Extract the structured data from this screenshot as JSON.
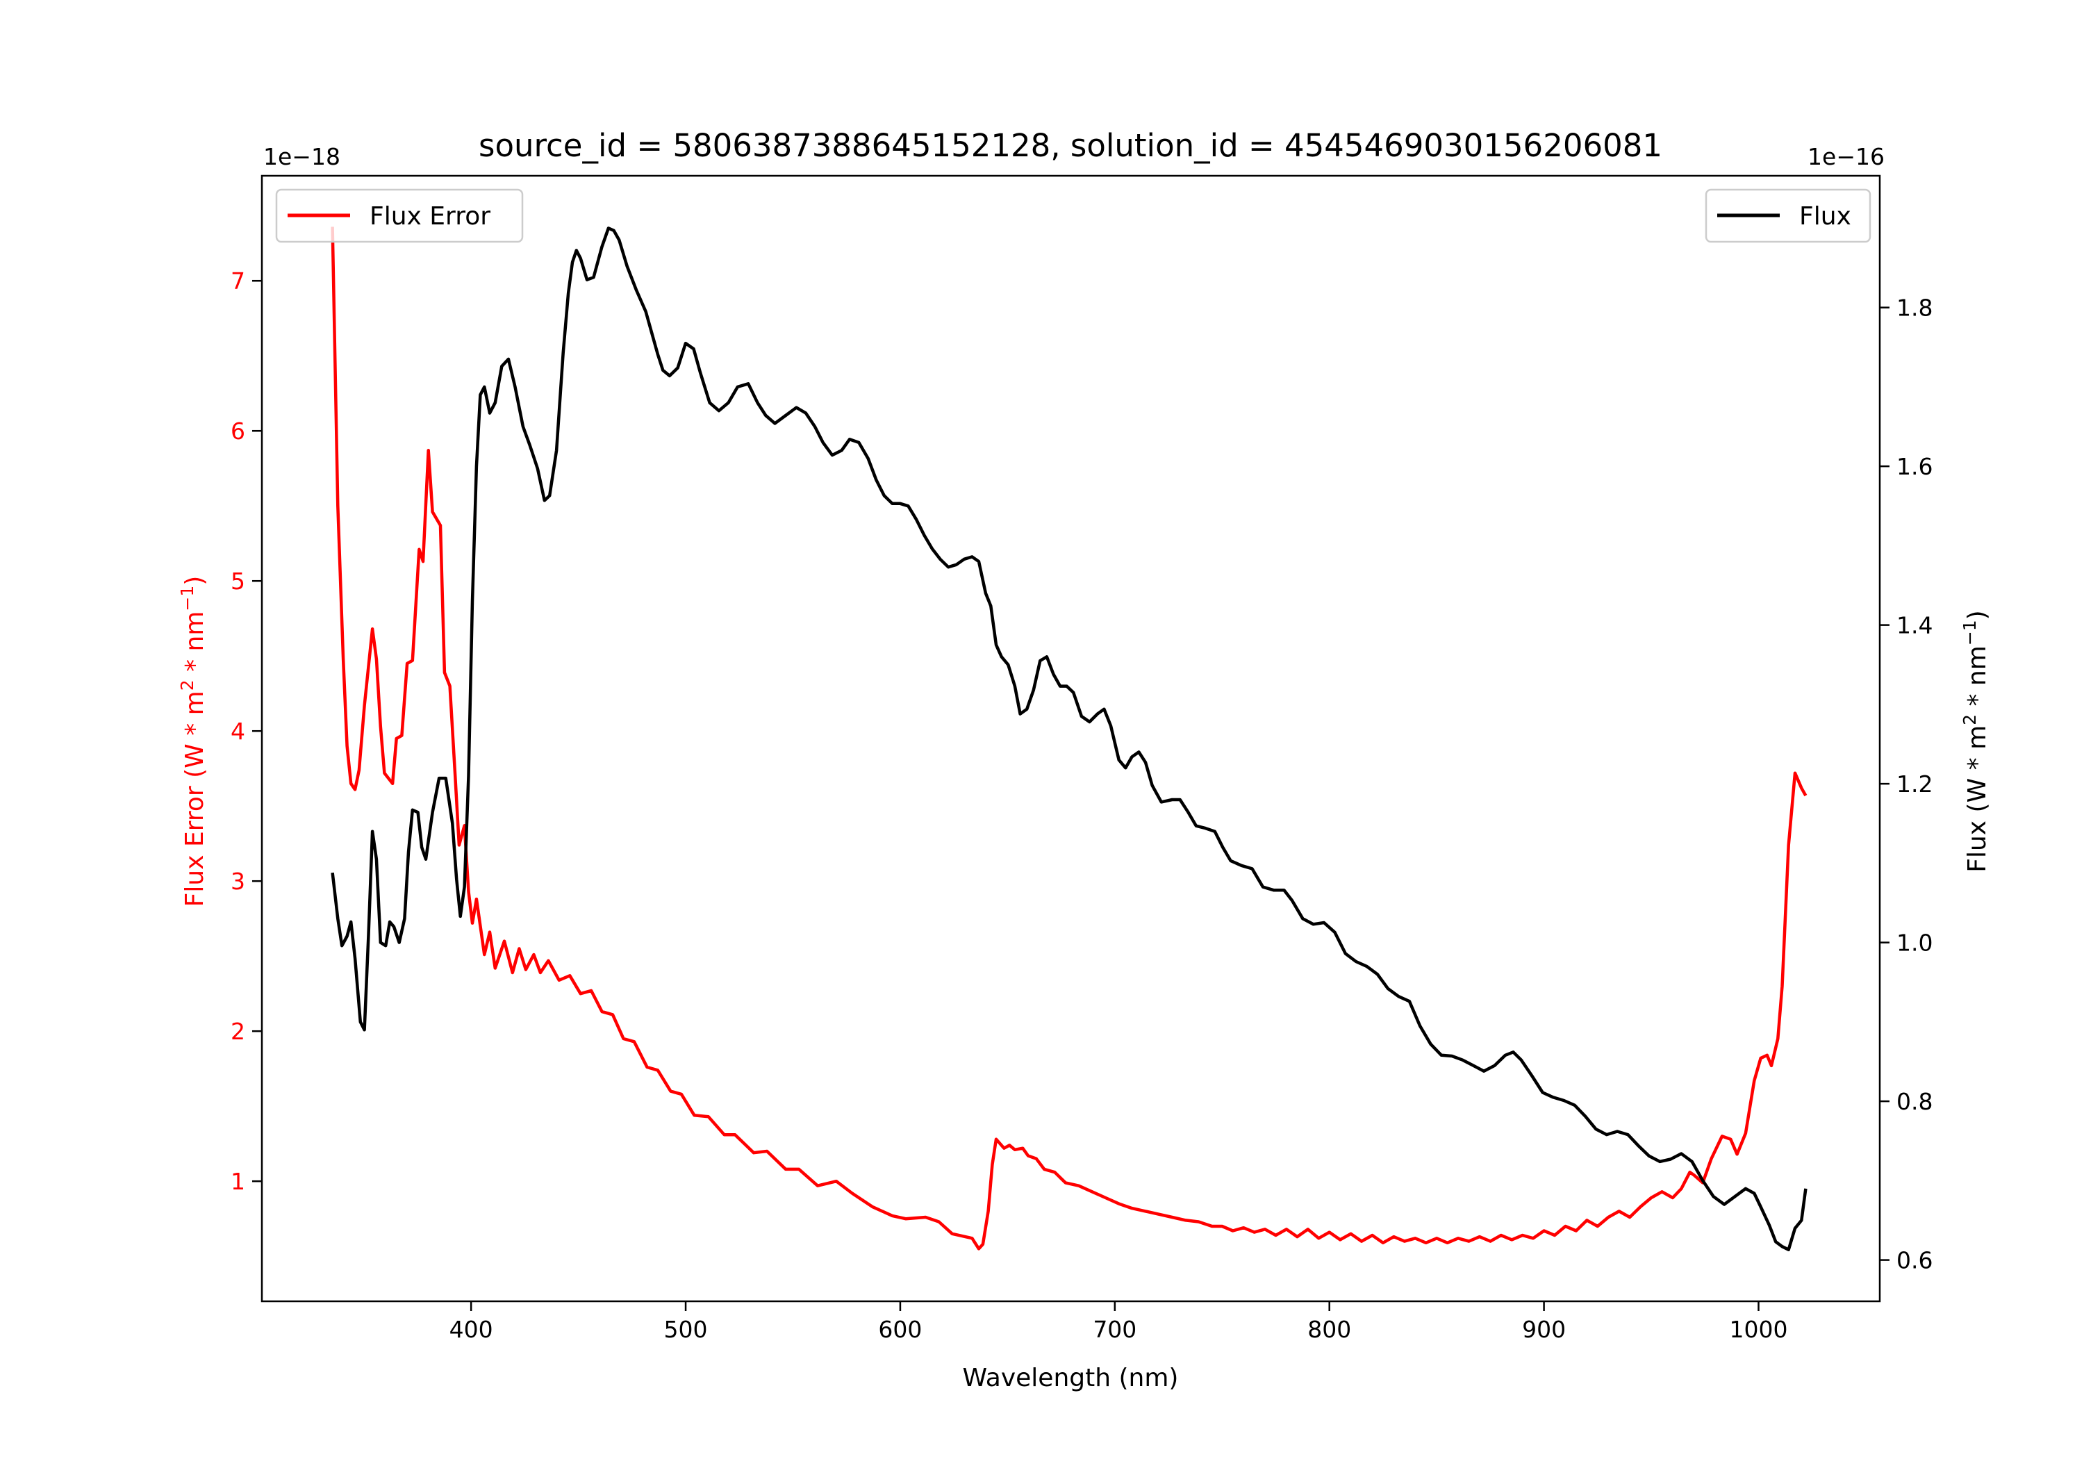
{
  "chart_data": {
    "type": "line",
    "title": "source_id = 5806387388645152128, solution_id = 4545469030156206081",
    "xlabel": "Wavelength (nm)",
    "xlim": [
      302.5,
      1056.5
    ],
    "xticks": [
      400,
      500,
      600,
      700,
      800,
      900,
      1000
    ],
    "grid": false,
    "y_left": {
      "label": {
        "prefix": "Flux Error (W * m",
        "sup1": "2",
        "mid": " * nm",
        "sup2": "−1",
        "suffix": ")"
      },
      "offset_text": "1e−18",
      "ylim": [
        0.2,
        7.7
      ],
      "ticks": [
        1,
        2,
        3,
        4,
        5,
        6,
        7
      ],
      "color": "#ff0000"
    },
    "y_right": {
      "label": {
        "prefix": "Flux (W * m",
        "sup1": "2",
        "mid": " * nm",
        "sup2": "−1",
        "suffix": ")"
      },
      "offset_text": "1e−16",
      "ylim": [
        0.548,
        1.966
      ],
      "ticks": [
        0.6,
        0.8,
        1.0,
        1.2,
        1.4,
        1.6,
        1.8
      ],
      "color": "#000000"
    },
    "legends": [
      {
        "label": "Flux Error",
        "placement": "upper-left",
        "color": "#ff0000"
      },
      {
        "label": "Flux",
        "placement": "upper-right",
        "color": "#000000"
      }
    ],
    "series": [
      {
        "name": "Flux Error",
        "axis": "left",
        "color": "#ff0000",
        "x": [
          335.4,
          337.9,
          340.4,
          342.2,
          344,
          345.9,
          347.8,
          350.3,
          354,
          355.9,
          357.8,
          359.6,
          363.4,
          365.2,
          367.7,
          370.2,
          372.7,
          375.8,
          377.6,
          380.1,
          382,
          385.7,
          387.6,
          390.1,
          392.5,
          394.4,
          396.9,
          398.8,
          400.6,
          402.5,
          406.2,
          408.7,
          411.2,
          415.5,
          419.3,
          422.4,
          425.5,
          429.2,
          432.3,
          436,
          441,
          446,
          451,
          456,
          461,
          466,
          471,
          476,
          482,
          487,
          493,
          498,
          504,
          510.6,
          518,
          523,
          531.7,
          537.9,
          546.6,
          552.8,
          561.5,
          570.2,
          577.6,
          587,
          596.3,
          602.5,
          611.8,
          618,
          624.2,
          633.5,
          636.6,
          638.5,
          641,
          642.9,
          644.7,
          648.4,
          650.9,
          653.4,
          657.1,
          659.6,
          663.4,
          667.1,
          672,
          677,
          683.2,
          689.4,
          695.7,
          701.9,
          708,
          714.3,
          720.5,
          726.7,
          733,
          739,
          745.3,
          750,
          755,
          760,
          765,
          770,
          775,
          780,
          785,
          790,
          795,
          800,
          805,
          810,
          815,
          820,
          825,
          830,
          835,
          840,
          845,
          850,
          855,
          860,
          865,
          870,
          875,
          880,
          885,
          890,
          895,
          900,
          905,
          910,
          915,
          920,
          925,
          930,
          935,
          940,
          945,
          950,
          955,
          960,
          964,
          968,
          970,
          974,
          978,
          983,
          987,
          990,
          994,
          998,
          1001,
          1004,
          1006,
          1009,
          1011,
          1014,
          1017,
          1020,
          1022
        ],
        "y": [
          7.36,
          5.5,
          4.48,
          3.9,
          3.65,
          3.61,
          3.74,
          4.17,
          4.68,
          4.48,
          4.03,
          3.72,
          3.65,
          3.95,
          3.97,
          4.45,
          4.47,
          5.21,
          5.13,
          5.87,
          5.46,
          5.37,
          4.39,
          4.3,
          3.72,
          3.24,
          3.37,
          2.93,
          2.72,
          2.88,
          2.51,
          2.66,
          2.42,
          2.6,
          2.39,
          2.55,
          2.41,
          2.51,
          2.39,
          2.47,
          2.34,
          2.37,
          2.25,
          2.27,
          2.13,
          2.11,
          1.95,
          1.93,
          1.76,
          1.74,
          1.6,
          1.58,
          1.44,
          1.43,
          1.31,
          1.31,
          1.19,
          1.2,
          1.08,
          1.08,
          0.97,
          1.0,
          0.92,
          0.83,
          0.77,
          0.75,
          0.76,
          0.73,
          0.65,
          0.62,
          0.55,
          0.58,
          0.8,
          1.11,
          1.28,
          1.22,
          1.24,
          1.21,
          1.22,
          1.17,
          1.15,
          1.08,
          1.06,
          0.99,
          0.97,
          0.93,
          0.89,
          0.85,
          0.82,
          0.8,
          0.78,
          0.76,
          0.74,
          0.73,
          0.7,
          0.7,
          0.67,
          0.69,
          0.66,
          0.68,
          0.64,
          0.68,
          0.63,
          0.68,
          0.62,
          0.66,
          0.61,
          0.65,
          0.6,
          0.64,
          0.59,
          0.63,
          0.6,
          0.62,
          0.59,
          0.62,
          0.59,
          0.62,
          0.6,
          0.63,
          0.6,
          0.64,
          0.61,
          0.64,
          0.62,
          0.67,
          0.64,
          0.7,
          0.67,
          0.74,
          0.7,
          0.76,
          0.8,
          0.76,
          0.83,
          0.89,
          0.93,
          0.89,
          0.95,
          1.06,
          1.04,
          0.99,
          1.15,
          1.3,
          1.28,
          1.18,
          1.32,
          1.67,
          1.82,
          1.84,
          1.77,
          1.95,
          2.3,
          3.24,
          3.72,
          3.62,
          3.57
        ]
      },
      {
        "name": "Flux",
        "axis": "right",
        "color": "#000000",
        "x": [
          335.4,
          337.9,
          339.8,
          342.2,
          344,
          345.9,
          348.4,
          350.3,
          352.2,
          354,
          355.9,
          357.8,
          360.2,
          362.1,
          364,
          366.5,
          369,
          370.8,
          372.7,
          375.2,
          377,
          378.9,
          382,
          385.1,
          388.2,
          391.3,
          393.2,
          395,
          396.9,
          398.8,
          400.6,
          402.5,
          404.3,
          406.2,
          408.7,
          411.2,
          414.3,
          417.4,
          420.5,
          424.2,
          427.3,
          431,
          434.2,
          436.6,
          439.8,
          442.9,
          445.3,
          447.2,
          449.1,
          451,
          454,
          457.1,
          460.9,
          464,
          466.5,
          469,
          472.7,
          477,
          481.4,
          484.5,
          487,
          489.4,
          492.5,
          496.3,
          500,
          503.7,
          506.8,
          511.2,
          515.5,
          519.9,
          524.2,
          529.2,
          533.5,
          537.3,
          541.6,
          546.6,
          551.6,
          556,
          560.2,
          564,
          568.3,
          572.7,
          576.4,
          580.7,
          585,
          588.8,
          592.5,
          596.3,
          600,
          603.7,
          607.5,
          611.2,
          614.9,
          618.6,
          622.4,
          626.1,
          629.8,
          633.5,
          636.6,
          639.8,
          642.2,
          644.7,
          647.2,
          650.3,
          653.4,
          655.9,
          659,
          662.1,
          665.2,
          668.3,
          671.4,
          674.5,
          677.6,
          680.7,
          684.5,
          688.2,
          691.9,
          695,
          698.1,
          701.9,
          705,
          708,
          711.2,
          714.3,
          717.4,
          721.7,
          726.7,
          730.4,
          734.2,
          737.9,
          742.2,
          746.6,
          750.3,
          754,
          759,
          764,
          769,
          774,
          778.9,
          782.6,
          787.6,
          792.5,
          797.5,
          802.5,
          807.5,
          812.4,
          817.4,
          822.4,
          827.3,
          832.3,
          837.3,
          842.2,
          847.2,
          852.2,
          857.1,
          862.1,
          867.1,
          872,
          877,
          882,
          885.7,
          889.4,
          894.4,
          899.4,
          904.3,
          909.3,
          914.3,
          919.3,
          924.2,
          929.2,
          934.2,
          939.1,
          944,
          949,
          954,
          959,
          964,
          969,
          974,
          979,
          984,
          989,
          994,
          998,
          1001,
          1005,
          1008,
          1011,
          1014,
          1017,
          1020,
          1022
        ],
        "y": [
          1.088,
          1.03,
          0.996,
          1.008,
          1.026,
          0.98,
          0.9,
          0.89,
          1.01,
          1.14,
          1.105,
          1.0,
          0.996,
          1.026,
          1.02,
          1.0,
          1.03,
          1.114,
          1.167,
          1.164,
          1.12,
          1.105,
          1.164,
          1.207,
          1.207,
          1.15,
          1.08,
          1.033,
          1.07,
          1.21,
          1.43,
          1.6,
          1.69,
          1.7,
          1.667,
          1.68,
          1.726,
          1.735,
          1.7,
          1.65,
          1.627,
          1.597,
          1.557,
          1.563,
          1.62,
          1.743,
          1.818,
          1.857,
          1.872,
          1.862,
          1.835,
          1.838,
          1.876,
          1.9,
          1.897,
          1.885,
          1.852,
          1.822,
          1.795,
          1.765,
          1.741,
          1.721,
          1.714,
          1.724,
          1.755,
          1.748,
          1.718,
          1.68,
          1.67,
          1.68,
          1.7,
          1.704,
          1.68,
          1.664,
          1.654,
          1.664,
          1.674,
          1.667,
          1.65,
          1.63,
          1.614,
          1.62,
          1.634,
          1.63,
          1.61,
          1.583,
          1.563,
          1.553,
          1.553,
          1.55,
          1.533,
          1.513,
          1.496,
          1.483,
          1.473,
          1.476,
          1.483,
          1.486,
          1.48,
          1.44,
          1.424,
          1.375,
          1.36,
          1.35,
          1.323,
          1.288,
          1.294,
          1.318,
          1.355,
          1.36,
          1.338,
          1.323,
          1.323,
          1.315,
          1.285,
          1.278,
          1.288,
          1.294,
          1.273,
          1.23,
          1.22,
          1.234,
          1.24,
          1.227,
          1.198,
          1.177,
          1.18,
          1.18,
          1.164,
          1.147,
          1.144,
          1.14,
          1.12,
          1.103,
          1.097,
          1.093,
          1.07,
          1.066,
          1.066,
          1.053,
          1.03,
          1.023,
          1.025,
          1.013,
          0.986,
          0.976,
          0.97,
          0.96,
          0.942,
          0.932,
          0.926,
          0.895,
          0.872,
          0.858,
          0.857,
          0.852,
          0.845,
          0.838,
          0.845,
          0.858,
          0.862,
          0.852,
          0.832,
          0.811,
          0.805,
          0.801,
          0.795,
          0.781,
          0.765,
          0.758,
          0.762,
          0.758,
          0.744,
          0.731,
          0.724,
          0.727,
          0.734,
          0.724,
          0.7,
          0.68,
          0.67,
          0.68,
          0.69,
          0.684,
          0.667,
          0.644,
          0.623,
          0.617,
          0.613,
          0.64,
          0.65,
          0.69
        ]
      }
    ]
  }
}
